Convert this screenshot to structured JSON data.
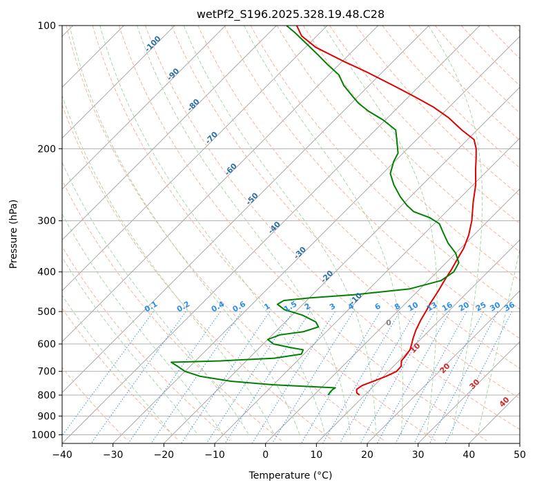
{
  "chart_data": {
    "type": "line",
    "title": "wetPf2_S196.2025.328.19.48.C28",
    "xlabel": "Temperature (°C)",
    "ylabel": "Pressure (hPa)",
    "xlim": [
      -40,
      50
    ],
    "ylim": [
      1050,
      100
    ],
    "y_scale": "log",
    "grid": true,
    "x_ticks": [
      -40,
      -30,
      -20,
      -10,
      0,
      10,
      20,
      30,
      40,
      50
    ],
    "y_ticks": [
      100,
      200,
      300,
      400,
      500,
      600,
      700,
      800,
      900,
      1000
    ],
    "skew": "skew-T",
    "series": [
      {
        "color": "#e00000",
        "points": [
          [
            9.0,
            800
          ],
          [
            8.0,
            790
          ],
          [
            7.3,
            775
          ],
          [
            7.6,
            758
          ],
          [
            9.0,
            740
          ],
          [
            10.5,
            720
          ],
          [
            11.6,
            700
          ],
          [
            11.5,
            680
          ],
          [
            10.5,
            660
          ],
          [
            10.3,
            640
          ],
          [
            10.0,
            620
          ],
          [
            9.2,
            600
          ],
          [
            8.3,
            580
          ],
          [
            7.3,
            555
          ],
          [
            6.3,
            525
          ],
          [
            5.6,
            500
          ],
          [
            4.8,
            475
          ],
          [
            4.0,
            445
          ],
          [
            3.0,
            415
          ],
          [
            2.4,
            395
          ],
          [
            1.6,
            375
          ],
          [
            0.6,
            350
          ],
          [
            -1.0,
            325
          ],
          [
            -3.2,
            300
          ],
          [
            -6.6,
            270
          ],
          [
            -9.5,
            245
          ],
          [
            -12.5,
            225
          ],
          [
            -14.8,
            210
          ],
          [
            -16.5,
            200
          ],
          [
            -18.7,
            190
          ],
          [
            -23.0,
            180
          ],
          [
            -28.0,
            168
          ],
          [
            -33.2,
            158
          ],
          [
            -38.3,
            150
          ],
          [
            -45.3,
            140
          ],
          [
            -53.0,
            130
          ],
          [
            -60.0,
            122
          ],
          [
            -68.0,
            113
          ],
          [
            -73.0,
            106
          ],
          [
            -76.0,
            100
          ]
        ]
      },
      {
        "color": "#008000",
        "points": [
          [
            2.8,
            800
          ],
          [
            2.6,
            785
          ],
          [
            2.6,
            775
          ],
          [
            2.8,
            768
          ],
          [
            -10.0,
            755
          ],
          [
            -19.0,
            740
          ],
          [
            -26.0,
            720
          ],
          [
            -30.0,
            700
          ],
          [
            -32.5,
            680
          ],
          [
            -34.5,
            665
          ],
          [
            -25.0,
            660
          ],
          [
            -15.0,
            650
          ],
          [
            -10.5,
            635
          ],
          [
            -11.0,
            620
          ],
          [
            -14.0,
            612
          ],
          [
            -18.0,
            600
          ],
          [
            -20.0,
            585
          ],
          [
            -18.5,
            570
          ],
          [
            -14.5,
            560
          ],
          [
            -12.5,
            545
          ],
          [
            -14.0,
            530
          ],
          [
            -18.0,
            510
          ],
          [
            -22.5,
            495
          ],
          [
            -25.0,
            480
          ],
          [
            -24.5,
            470
          ],
          [
            -20.0,
            463
          ],
          [
            -12.0,
            455
          ],
          [
            -2.0,
            440
          ],
          [
            2.5,
            420
          ],
          [
            3.3,
            400
          ],
          [
            2.5,
            380
          ],
          [
            0.0,
            360
          ],
          [
            -3.5,
            340
          ],
          [
            -6.6,
            320
          ],
          [
            -9.0,
            305
          ],
          [
            -12.0,
            295
          ],
          [
            -16.4,
            285
          ],
          [
            -19.0,
            275
          ],
          [
            -22.0,
            262
          ],
          [
            -25.6,
            245
          ],
          [
            -28.5,
            230
          ],
          [
            -30.2,
            215
          ],
          [
            -31.0,
            205
          ],
          [
            -33.3,
            193
          ],
          [
            -36.0,
            180
          ],
          [
            -40.5,
            170
          ],
          [
            -45.0,
            162
          ],
          [
            -48.5,
            155
          ],
          [
            -51.5,
            148
          ],
          [
            -55.0,
            140
          ],
          [
            -58.0,
            132
          ],
          [
            -62.0,
            125
          ],
          [
            -66.0,
            118
          ],
          [
            -71.0,
            110
          ],
          [
            -75.0,
            104
          ],
          [
            -78.0,
            100
          ]
        ]
      }
    ],
    "isotherm_labels": [
      "-100",
      "-90",
      "-80",
      "-70",
      "-60",
      "-50",
      "-40",
      "-30",
      "-20",
      "-10"
    ],
    "mixing_ratio_labels": [
      "0.1",
      "0.2",
      "0.4",
      "0.6",
      "1",
      "1.5",
      "2",
      "3",
      "4",
      "6",
      "8",
      "10",
      "13",
      "16",
      "20",
      "25",
      "30",
      "36"
    ],
    "red_labels": [
      "10",
      "20",
      "30",
      "40"
    ],
    "gray_label": "0"
  }
}
